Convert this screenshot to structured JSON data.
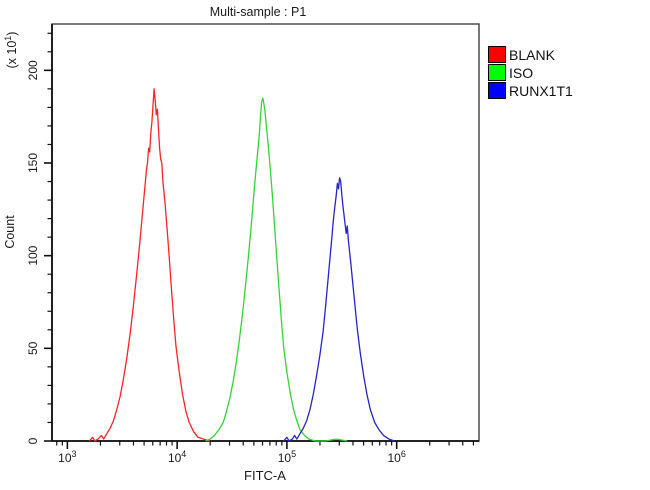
{
  "chart_data": {
    "type": "line",
    "title": "Multi-sample : P1",
    "xlabel": "FITC-A",
    "ylabel": "Count",
    "frame_color": "#3f3f3f",
    "axis_color": "#111111",
    "text_color": "#1a1a1a",
    "x_axis": {
      "scale": "log10",
      "log_min": 2.86,
      "log_max": 6.75,
      "major_exponents": [
        3,
        4,
        5,
        6
      ],
      "minor_multiples": [
        2,
        3,
        4,
        5,
        6,
        7,
        8,
        9
      ]
    },
    "y_axis": {
      "min": 0,
      "max": 225,
      "major_ticks": [
        0,
        50,
        100,
        150,
        200
      ],
      "minor_step": 10,
      "unit_prefix": "(x 10",
      "unit_exponent": "1",
      "unit_suffix": ")"
    },
    "legend": {
      "position": "top-right",
      "entries": [
        {
          "label": "BLANK",
          "color": "#ff0000"
        },
        {
          "label": "ISO",
          "color": "#00ff00"
        },
        {
          "label": "RUNX1T1",
          "color": "#0000ff"
        }
      ]
    },
    "series": [
      {
        "name": "BLANK",
        "color": "#ff2222",
        "peak_x": 6000,
        "peak_count": 190,
        "points": [
          [
            3.2,
            0
          ],
          [
            3.23,
            2
          ],
          [
            3.25,
            0
          ],
          [
            3.28,
            1
          ],
          [
            3.31,
            3
          ],
          [
            3.33,
            1
          ],
          [
            3.36,
            4
          ],
          [
            3.39,
            7
          ],
          [
            3.42,
            11
          ],
          [
            3.45,
            17
          ],
          [
            3.48,
            24
          ],
          [
            3.51,
            33
          ],
          [
            3.54,
            44
          ],
          [
            3.57,
            57
          ],
          [
            3.6,
            72
          ],
          [
            3.63,
            89
          ],
          [
            3.66,
            107
          ],
          [
            3.68,
            120
          ],
          [
            3.7,
            133
          ],
          [
            3.72,
            146
          ],
          [
            3.73,
            150
          ],
          [
            3.74,
            158
          ],
          [
            3.75,
            156
          ],
          [
            3.76,
            166
          ],
          [
            3.77,
            172
          ],
          [
            3.78,
            181
          ],
          [
            3.79,
            190
          ],
          [
            3.8,
            184
          ],
          [
            3.81,
            176
          ],
          [
            3.82,
            179
          ],
          [
            3.83,
            168
          ],
          [
            3.84,
            158
          ],
          [
            3.85,
            152
          ],
          [
            3.86,
            150
          ],
          [
            3.87,
            140
          ],
          [
            3.89,
            128
          ],
          [
            3.91,
            113
          ],
          [
            3.93,
            97
          ],
          [
            3.95,
            81
          ],
          [
            3.97,
            65
          ],
          [
            3.99,
            51
          ],
          [
            4.02,
            37
          ],
          [
            4.05,
            25
          ],
          [
            4.08,
            16
          ],
          [
            4.11,
            10
          ],
          [
            4.15,
            5
          ],
          [
            4.19,
            2
          ],
          [
            4.24,
            1
          ],
          [
            4.3,
            0
          ]
        ]
      },
      {
        "name": "ISO",
        "color": "#35d435",
        "peak_x": 59000,
        "peak_count": 185,
        "points": [
          [
            4.26,
            0
          ],
          [
            4.3,
            1
          ],
          [
            4.34,
            3
          ],
          [
            4.38,
            6
          ],
          [
            4.42,
            10
          ],
          [
            4.45,
            16
          ],
          [
            4.48,
            23
          ],
          [
            4.51,
            32
          ],
          [
            4.54,
            43
          ],
          [
            4.57,
            56
          ],
          [
            4.6,
            71
          ],
          [
            4.63,
            88
          ],
          [
            4.65,
            100
          ],
          [
            4.67,
            113
          ],
          [
            4.69,
            127
          ],
          [
            4.71,
            141
          ],
          [
            4.73,
            154
          ],
          [
            4.74,
            160
          ],
          [
            4.75,
            167
          ],
          [
            4.76,
            176
          ],
          [
            4.77,
            183
          ],
          [
            4.78,
            185
          ],
          [
            4.79,
            182
          ],
          [
            4.8,
            178
          ],
          [
            4.81,
            172
          ],
          [
            4.83,
            160
          ],
          [
            4.85,
            146
          ],
          [
            4.87,
            131
          ],
          [
            4.89,
            114
          ],
          [
            4.91,
            97
          ],
          [
            4.93,
            81
          ],
          [
            4.95,
            65
          ],
          [
            4.97,
            51
          ],
          [
            5.0,
            37
          ],
          [
            5.03,
            26
          ],
          [
            5.06,
            17
          ],
          [
            5.09,
            11
          ],
          [
            5.12,
            6
          ],
          [
            5.16,
            3
          ],
          [
            5.2,
            1
          ],
          [
            5.26,
            0
          ],
          [
            5.35,
            0
          ],
          [
            5.45,
            1
          ],
          [
            5.55,
            0
          ]
        ]
      },
      {
        "name": "RUNX1T1",
        "color": "#2424cc",
        "peak_x": 290000,
        "peak_count": 142,
        "points": [
          [
            4.97,
            0
          ],
          [
            5.0,
            2
          ],
          [
            5.02,
            0
          ],
          [
            5.05,
            1
          ],
          [
            5.07,
            3
          ],
          [
            5.09,
            1
          ],
          [
            5.12,
            4
          ],
          [
            5.15,
            7
          ],
          [
            5.18,
            11
          ],
          [
            5.21,
            17
          ],
          [
            5.24,
            25
          ],
          [
            5.27,
            35
          ],
          [
            5.3,
            46
          ],
          [
            5.33,
            59
          ],
          [
            5.35,
            71
          ],
          [
            5.37,
            84
          ],
          [
            5.39,
            97
          ],
          [
            5.41,
            110
          ],
          [
            5.42,
            117
          ],
          [
            5.43,
            123
          ],
          [
            5.44,
            128
          ],
          [
            5.45,
            133
          ],
          [
            5.46,
            139
          ],
          [
            5.47,
            136
          ],
          [
            5.48,
            142
          ],
          [
            5.49,
            140
          ],
          [
            5.5,
            133
          ],
          [
            5.51,
            127
          ],
          [
            5.53,
            117
          ],
          [
            5.54,
            112
          ],
          [
            5.55,
            116
          ],
          [
            5.56,
            108
          ],
          [
            5.58,
            97
          ],
          [
            5.6,
            85
          ],
          [
            5.62,
            73
          ],
          [
            5.64,
            61
          ],
          [
            5.67,
            47
          ],
          [
            5.7,
            35
          ],
          [
            5.73,
            25
          ],
          [
            5.76,
            17
          ],
          [
            5.8,
            10
          ],
          [
            5.84,
            6
          ],
          [
            5.88,
            3
          ],
          [
            5.93,
            1
          ],
          [
            5.98,
            0
          ]
        ]
      }
    ]
  }
}
